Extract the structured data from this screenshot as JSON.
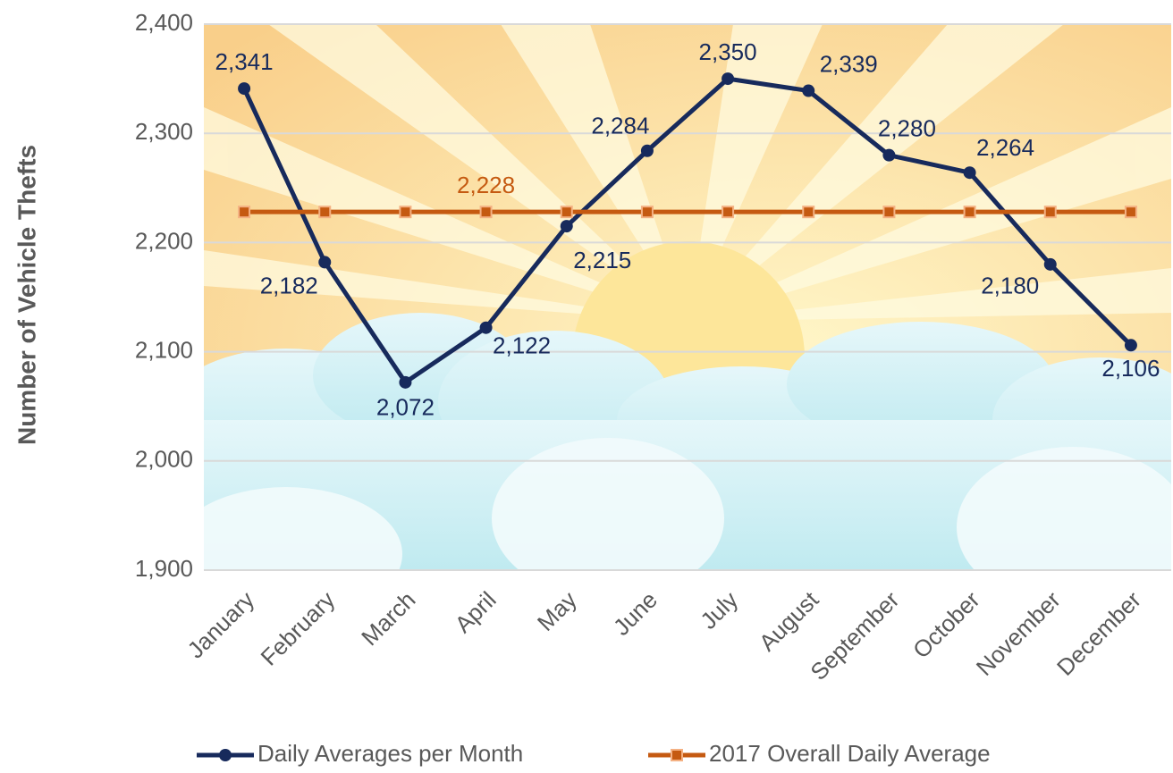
{
  "chart_data": {
    "type": "line",
    "y_label": "Number of Vehicle Thefts",
    "categories": [
      "January",
      "February",
      "March",
      "April",
      "May",
      "June",
      "July",
      "August",
      "September",
      "October",
      "November",
      "December"
    ],
    "series": [
      {
        "name": "Daily Averages per Month",
        "color": "#172a5c",
        "marker": "circle",
        "values": [
          2341,
          2182,
          2072,
          2122,
          2215,
          2284,
          2350,
          2339,
          2280,
          2264,
          2180,
          2106
        ],
        "value_labels": [
          "2,341",
          "2,182",
          "2,072",
          "2,122",
          "2,215",
          "2,284",
          "2,350",
          "2,339",
          "2,280",
          "2,264",
          "2,180",
          "2,106"
        ]
      },
      {
        "name": "2017 Overall Daily Average",
        "color": "#c55a11",
        "marker": "square",
        "values": [
          2228,
          2228,
          2228,
          2228,
          2228,
          2228,
          2228,
          2228,
          2228,
          2228,
          2228,
          2228
        ],
        "value_labels": [
          null,
          null,
          null,
          "2,228",
          null,
          null,
          null,
          null,
          null,
          null,
          null,
          null
        ]
      }
    ],
    "ylim": [
      1900,
      2400
    ],
    "yticks": [
      {
        "value": 1900,
        "label": "1,900"
      },
      {
        "value": 2000,
        "label": "2,000"
      },
      {
        "value": 2100,
        "label": "2,100"
      },
      {
        "value": 2200,
        "label": "2,200"
      },
      {
        "value": 2300,
        "label": "2,300"
      },
      {
        "value": 2400,
        "label": "2,400"
      }
    ],
    "grid": true,
    "legend": "bottom"
  }
}
